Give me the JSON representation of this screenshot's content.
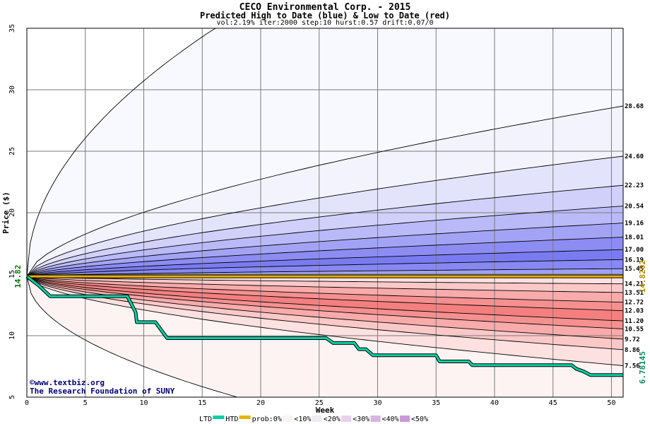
{
  "header": {
    "title": "CECO Environmental Corp. - 2015",
    "subtitle": "Predicted High to Date (blue) &  Low to Date (red)",
    "params": "vol:2.19% iter:2000 step:10 hurst:0.57 drift:0.07/0"
  },
  "watermark": {
    "line1": "©www.textbiz.org",
    "line2": "The Research Foundation of SUNY"
  },
  "legend": {
    "ltd": "LTD",
    "htd": "HTD",
    "prob": "prob:0%",
    "b10": "<10%",
    "b20": "<20%",
    "b30": "<30%",
    "b40": "<40%",
    "b50": "<50%"
  },
  "chart_data": {
    "type": "area",
    "xlabel": "Week",
    "ylabel": "Price ($)",
    "xlim": [
      0,
      51
    ],
    "ylim": [
      5,
      35
    ],
    "x_ticks": [
      0,
      5,
      10,
      15,
      20,
      25,
      30,
      35,
      40,
      45,
      50
    ],
    "y_ticks": [
      5,
      10,
      15,
      20,
      25,
      30,
      35
    ],
    "grid": true,
    "start_price": 14.82,
    "start_price_label": "14.82",
    "current_price": 14.8202,
    "current_price_label": "14.8202",
    "last_low": 6.78145,
    "last_low_label": "6.78145",
    "high_levels": [
      {
        "label": "28.68",
        "value": 28.68,
        "fill": "#f3f3fe"
      },
      {
        "label": "24.60",
        "value": 24.6,
        "fill": "#e3e3fc"
      },
      {
        "label": "22.23",
        "value": 22.23,
        "fill": "#d0d0fb"
      },
      {
        "label": "20.54",
        "value": 20.54,
        "fill": "#babaf9"
      },
      {
        "label": "19.16",
        "value": 19.16,
        "fill": "#a3a3f6"
      },
      {
        "label": "18.01",
        "value": 18.01,
        "fill": "#8c8cf3"
      },
      {
        "label": "17.00",
        "value": 17.0,
        "fill": "#7b7bf1"
      },
      {
        "label": "16.19",
        "value": 16.19,
        "fill": "#8888f3"
      },
      {
        "label": "15.45",
        "value": 15.45,
        "fill": "#a0a0f6"
      }
    ],
    "high_outer": {
      "at_week_11": 31.5,
      "reach_35_week": 17
    },
    "low_levels": [
      {
        "label": "14.21",
        "value": 14.21,
        "fill": "#fde0e0"
      },
      {
        "label": "13.51",
        "value": 13.51,
        "fill": "#fbc8c8"
      },
      {
        "label": "12.72",
        "value": 12.72,
        "fill": "#f9aaaa"
      },
      {
        "label": "12.03",
        "value": 12.03,
        "fill": "#f69090"
      },
      {
        "label": "11.20",
        "value": 11.2,
        "fill": "#f47f7f"
      },
      {
        "label": "10.55",
        "value": 10.55,
        "fill": "#f69090"
      },
      {
        "label": "9.72",
        "value": 9.72,
        "fill": "#f9aaaa"
      },
      {
        "label": "8.86",
        "value": 8.86,
        "fill": "#fbc8c8"
      },
      {
        "label": "7.56",
        "value": 7.56,
        "fill": "#fde0e0"
      }
    ],
    "low_outer": {
      "at_week_10": 7.5,
      "reach_5_week": 22
    },
    "ltd_series": {
      "name": "LTD",
      "color": "#00d2a6",
      "points": [
        [
          0,
          14.82
        ],
        [
          1,
          14.1
        ],
        [
          2,
          13.2
        ],
        [
          5,
          13.2
        ],
        [
          8.6,
          13.2
        ],
        [
          9.3,
          11.9
        ],
        [
          9.4,
          11.1
        ],
        [
          11,
          11.1
        ],
        [
          12,
          9.8
        ],
        [
          25.6,
          9.8
        ],
        [
          26.2,
          9.4
        ],
        [
          28,
          9.4
        ],
        [
          28.4,
          8.9
        ],
        [
          29,
          8.9
        ],
        [
          29.6,
          8.4
        ],
        [
          35,
          8.4
        ],
        [
          35.3,
          7.9
        ],
        [
          37.8,
          7.9
        ],
        [
          38.1,
          7.6
        ],
        [
          46.6,
          7.6
        ],
        [
          47,
          7.3
        ],
        [
          47.6,
          7.1
        ],
        [
          48.2,
          6.8
        ],
        [
          51,
          6.8
        ]
      ]
    },
    "htd_series": {
      "name": "HTD",
      "color": "#e6b400",
      "value": 14.82
    }
  }
}
